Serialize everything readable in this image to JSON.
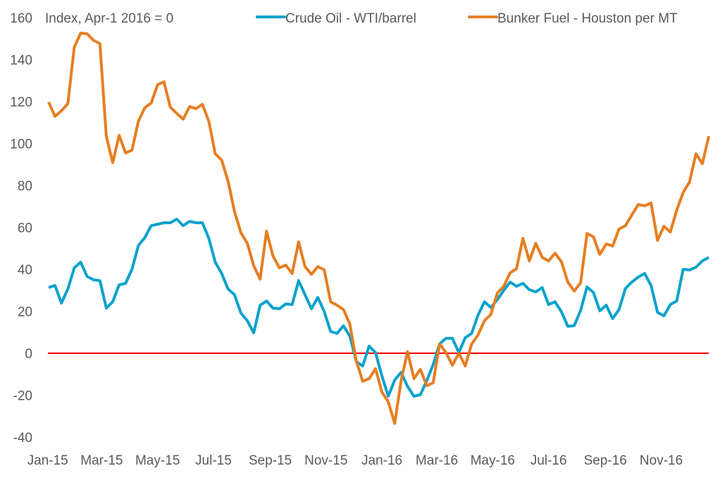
{
  "chart_data": {
    "type": "line",
    "title": "",
    "annotation": "Index, Apr-1 2016 = 0",
    "xlabel": "",
    "ylabel": "",
    "ylim": [
      -40,
      160
    ],
    "y_ticks": [
      160,
      140,
      120,
      100,
      80,
      60,
      40,
      20,
      0,
      -20,
      -40
    ],
    "x_tick_labels": [
      "Jan-15",
      "Mar-15",
      "May-15",
      "Jul-15",
      "Sep-15",
      "Nov-15",
      "Jan-16",
      "Mar-16",
      "May-16",
      "Jul-16",
      "Sep-16",
      "Nov-16"
    ],
    "x_tick_dates": [
      "2015-01-01",
      "2015-03-01",
      "2015-05-01",
      "2015-07-01",
      "2015-09-01",
      "2015-11-01",
      "2016-01-01",
      "2016-03-01",
      "2016-05-01",
      "2016-07-01",
      "2016-09-01",
      "2016-11-01"
    ],
    "grid": false,
    "reference_line": {
      "y": 0,
      "color": "#ff0000"
    },
    "legend_position": "top",
    "x": [
      "2015-01-02",
      "2015-01-09",
      "2015-01-16",
      "2015-01-23",
      "2015-01-30",
      "2015-02-06",
      "2015-02-13",
      "2015-02-20",
      "2015-02-27",
      "2015-03-06",
      "2015-03-13",
      "2015-03-20",
      "2015-03-27",
      "2015-04-03",
      "2015-04-10",
      "2015-04-17",
      "2015-04-24",
      "2015-05-01",
      "2015-05-08",
      "2015-05-15",
      "2015-05-22",
      "2015-05-29",
      "2015-06-05",
      "2015-06-12",
      "2015-06-19",
      "2015-06-26",
      "2015-07-03",
      "2015-07-10",
      "2015-07-17",
      "2015-07-24",
      "2015-07-31",
      "2015-08-07",
      "2015-08-14",
      "2015-08-21",
      "2015-08-28",
      "2015-09-04",
      "2015-09-11",
      "2015-09-18",
      "2015-09-25",
      "2015-10-02",
      "2015-10-09",
      "2015-10-16",
      "2015-10-23",
      "2015-10-30",
      "2015-11-06",
      "2015-11-13",
      "2015-11-20",
      "2015-11-27",
      "2015-12-04",
      "2015-12-11",
      "2015-12-18",
      "2015-12-25",
      "2016-01-01",
      "2016-01-08",
      "2016-01-15",
      "2016-01-22",
      "2016-01-29",
      "2016-02-05",
      "2016-02-12",
      "2016-02-19",
      "2016-02-26",
      "2016-03-04",
      "2016-03-11",
      "2016-03-18",
      "2016-03-25",
      "2016-04-01",
      "2016-04-08",
      "2016-04-15",
      "2016-04-22",
      "2016-04-29",
      "2016-05-06",
      "2016-05-13",
      "2016-05-20",
      "2016-05-27",
      "2016-06-03",
      "2016-06-10",
      "2016-06-17",
      "2016-06-24",
      "2016-07-01",
      "2016-07-08",
      "2016-07-15",
      "2016-07-22",
      "2016-07-29",
      "2016-08-05",
      "2016-08-12",
      "2016-08-19",
      "2016-08-26",
      "2016-09-02",
      "2016-09-09",
      "2016-09-16",
      "2016-09-23",
      "2016-09-30",
      "2016-10-07",
      "2016-10-14",
      "2016-10-21",
      "2016-10-28",
      "2016-11-04",
      "2016-11-11",
      "2016-11-18",
      "2016-11-25",
      "2016-12-02",
      "2016-12-09",
      "2016-12-16",
      "2016-12-23"
    ],
    "series": [
      {
        "name": "Crude Oil - WTI/barrel",
        "color": "#0aa2cc",
        "values": [
          31.3,
          32.3,
          23.9,
          30.6,
          40.7,
          43.4,
          36.6,
          35,
          34.6,
          21.5,
          24.5,
          32.6,
          33.3,
          40,
          51.4,
          55.1,
          60.8,
          61.5,
          62.2,
          62.2,
          63.9,
          60.8,
          62.9,
          62.2,
          62.2,
          54.8,
          43.4,
          38,
          30.6,
          27.9,
          19.2,
          15.5,
          9.7,
          22.9,
          24.9,
          21.5,
          21.2,
          23.5,
          23.2,
          34.6,
          27.9,
          21.2,
          26.6,
          19.8,
          10.4,
          9.4,
          13.1,
          8.1,
          -4,
          -6.1,
          3.4,
          0.3,
          -10.8,
          -20.5,
          -12.8,
          -9.1,
          -15.8,
          -20.5,
          -19.8,
          -13.1,
          -5.4,
          4.4,
          7.1,
          7.1,
          0.3,
          7.4,
          9.4,
          18.2,
          24.5,
          21.8,
          25.5,
          29.9,
          33.9,
          31.9,
          33.3,
          30.3,
          29.2,
          31.3,
          23.2,
          24.5,
          19.8,
          12.8,
          13.1,
          20.5,
          31.6,
          28.9,
          20.2,
          22.9,
          16.5,
          20.8,
          30.9,
          33.9,
          36.3,
          38,
          32.3,
          19.5,
          17.8,
          23.2,
          24.9,
          40,
          39.7,
          41,
          44,
          45.7
        ]
      },
      {
        "name": "Bunker Fuel - Houston per MT",
        "color": "#e67e22",
        "values": [
          119.7,
          112.9,
          115.6,
          119,
          145.9,
          152.6,
          152.3,
          149.2,
          147.6,
          103.4,
          90.9,
          103.9,
          95.5,
          96.8,
          110.6,
          117,
          119.3,
          128,
          129.4,
          117.3,
          114.3,
          111.6,
          117.6,
          116.6,
          118.7,
          110.6,
          95.1,
          92.1,
          82,
          67.6,
          57.5,
          52.4,
          41.7,
          35.3,
          58.2,
          46.4,
          40.7,
          42,
          38,
          53.1,
          41.3,
          37.6,
          41.3,
          39.7,
          24.5,
          22.9,
          20.8,
          13.8,
          -3.7,
          -13.4,
          -12.1,
          -7.4,
          -18.5,
          -23.2,
          -33.5,
          -13.1,
          0.7,
          -12.1,
          -7.7,
          -15.5,
          -14.1,
          4.4,
          0.3,
          -5.7,
          0,
          -6.1,
          4.4,
          8.7,
          15.5,
          18.5,
          28.6,
          31.9,
          38.3,
          40.3,
          54.8,
          44,
          52.4,
          45.7,
          44,
          47.7,
          43.7,
          33.9,
          29.6,
          33.6,
          57.1,
          55.5,
          47.1,
          52.1,
          51.1,
          59.2,
          60.8,
          65.9,
          70.9,
          70.3,
          71.6,
          53.8,
          60.5,
          57.8,
          68.2,
          76.6,
          81.7,
          95.1,
          90.4,
          103.5
        ]
      }
    ]
  }
}
